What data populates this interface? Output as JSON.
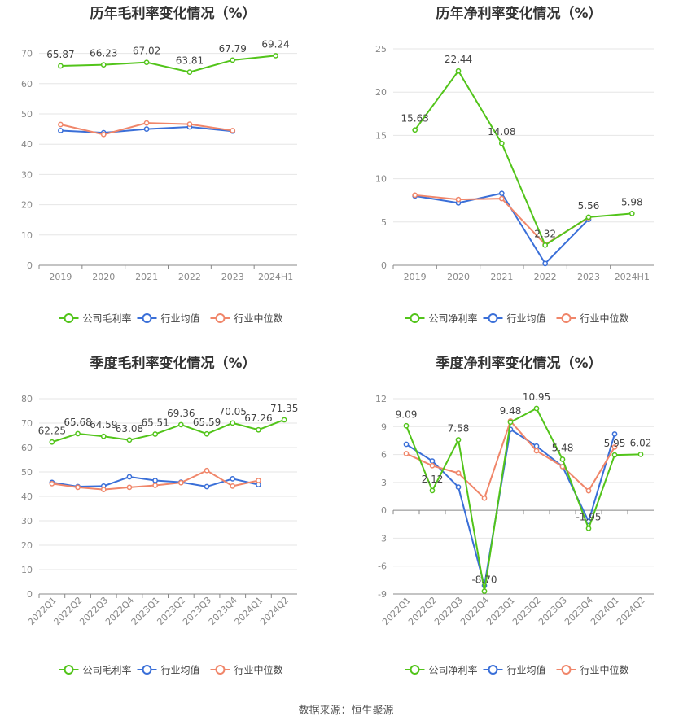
{
  "footer": "数据来源：恒生聚源",
  "colors": {
    "company": "#52c41a",
    "avg": "#3a6fd8",
    "median": "#f0866a"
  },
  "chart_data": [
    {
      "type": "line",
      "title": "历年毛利率变化情况（%）",
      "categories": [
        "2019",
        "2020",
        "2021",
        "2022",
        "2023",
        "2024H1"
      ],
      "yticks": [
        0,
        10,
        20,
        30,
        40,
        50,
        60,
        70
      ],
      "ylim": [
        0,
        75
      ],
      "rotate_x": false,
      "series": [
        {
          "name": "公司毛利率",
          "values": [
            65.87,
            66.23,
            67.02,
            63.81,
            67.79,
            69.24
          ],
          "labels": [
            "65.87",
            "66.23",
            "67.02",
            "63.81",
            "67.79",
            "69.24"
          ]
        },
        {
          "name": "行业均值",
          "values": [
            44.5,
            43.8,
            45.0,
            45.7,
            44.3,
            null
          ]
        },
        {
          "name": "行业中位数",
          "values": [
            46.5,
            43.2,
            47.0,
            46.6,
            44.5,
            null
          ]
        }
      ]
    },
    {
      "type": "line",
      "title": "历年净利率变化情况（%）",
      "categories": [
        "2019",
        "2020",
        "2021",
        "2022",
        "2023",
        "2024H1"
      ],
      "yticks": [
        0,
        5,
        10,
        15,
        20,
        25
      ],
      "ylim": [
        0,
        25
      ],
      "rotate_x": false,
      "series": [
        {
          "name": "公司净利率",
          "values": [
            15.63,
            22.44,
            14.08,
            2.32,
            5.56,
            5.98
          ],
          "labels": [
            "15.63",
            "22.44",
            "14.08",
            "2.32",
            "5.56",
            "5.98"
          ]
        },
        {
          "name": "行业均值",
          "values": [
            8.0,
            7.2,
            8.3,
            0.2,
            5.3,
            null
          ]
        },
        {
          "name": "行业中位数",
          "values": [
            8.1,
            7.6,
            7.7,
            2.4,
            5.5,
            null
          ]
        }
      ]
    },
    {
      "type": "line",
      "title": "季度毛利率变化情况（%）",
      "categories": [
        "2022Q1",
        "2022Q2",
        "2022Q3",
        "2022Q4",
        "2023Q1",
        "2023Q2",
        "2023Q3",
        "2023Q4",
        "2024Q1",
        "2024Q2"
      ],
      "yticks": [
        0,
        10,
        20,
        30,
        40,
        50,
        60,
        70,
        80
      ],
      "ylim": [
        0,
        80
      ],
      "rotate_x": true,
      "series": [
        {
          "name": "公司毛利率",
          "values": [
            62.25,
            65.68,
            64.59,
            63.08,
            65.51,
            69.36,
            65.59,
            70.05,
            67.26,
            71.35
          ],
          "labels": [
            "62.25",
            "65.68",
            "64.59",
            "63.08",
            "65.51",
            "69.36",
            "65.59",
            "70.05",
            "67.26",
            "71.35"
          ]
        },
        {
          "name": "行业均值",
          "values": [
            45.7,
            44.0,
            44.2,
            48.0,
            46.5,
            45.8,
            44.0,
            47.2,
            44.8,
            null
          ]
        },
        {
          "name": "行业中位数",
          "values": [
            45.2,
            43.7,
            42.8,
            43.7,
            44.5,
            45.6,
            50.6,
            44.2,
            46.5,
            null
          ]
        }
      ]
    },
    {
      "type": "line",
      "title": "季度净利率变化情况（%）",
      "categories": [
        "2022Q1",
        "2022Q2",
        "2022Q3",
        "2022Q4",
        "2023Q1",
        "2023Q2",
        "2023Q3",
        "2023Q4",
        "2024Q1",
        "2024Q2"
      ],
      "yticks": [
        -9,
        -6,
        -3,
        0,
        3,
        6,
        9,
        12
      ],
      "ylim": [
        -9,
        12
      ],
      "rotate_x": true,
      "series": [
        {
          "name": "公司净利率",
          "values": [
            9.09,
            2.12,
            7.58,
            -8.7,
            9.48,
            10.95,
            5.48,
            -1.95,
            5.95,
            6.02
          ],
          "labels": [
            "9.09",
            "2.12",
            "7.58",
            "-8.70",
            "9.48",
            "10.95",
            "5.48",
            "-1.95",
            "5.95",
            "6.02"
          ]
        },
        {
          "name": "行业均值",
          "values": [
            7.1,
            5.3,
            2.5,
            -8.1,
            8.7,
            6.9,
            4.7,
            -1.2,
            8.2,
            null
          ]
        },
        {
          "name": "行业中位数",
          "values": [
            6.1,
            4.8,
            4.0,
            1.3,
            9.6,
            6.4,
            4.7,
            2.1,
            6.8,
            null
          ]
        }
      ]
    }
  ]
}
